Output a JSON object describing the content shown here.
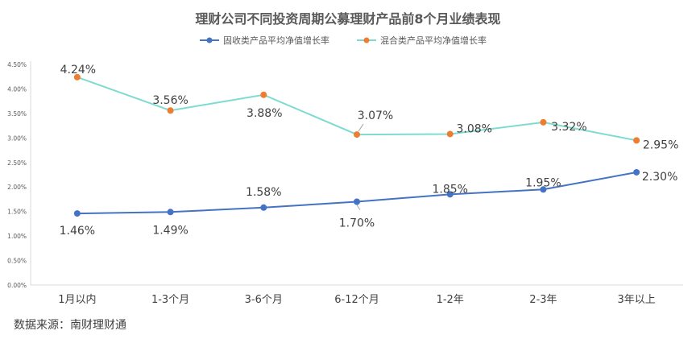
{
  "chart_data": {
    "type": "line",
    "title": "理财公司不同投资周期公募理财产品前8个月业绩表现",
    "categories": [
      "1月以内",
      "1-3个月",
      "3-6个月",
      "6-12个月",
      "1-2年",
      "2-3年",
      "3年以上"
    ],
    "series": [
      {
        "name": "固收类产品平均净值增长率",
        "values": [
          1.46,
          1.49,
          1.58,
          1.7,
          1.85,
          1.95,
          2.3
        ],
        "labels": [
          "1.46%",
          "1.49%",
          "1.58%",
          "1.70%",
          "1.85%",
          "1.95%",
          "2.30%"
        ],
        "line_color": "#4472C4",
        "marker_color": "#4472C4"
      },
      {
        "name": "混合类产品平均净值增长率",
        "values": [
          4.24,
          3.56,
          3.88,
          3.07,
          3.08,
          3.32,
          2.95
        ],
        "labels": [
          "4.24%",
          "3.56%",
          "3.88%",
          "3.07%",
          "3.08%",
          "3.32%",
          "2.95%"
        ],
        "line_color": "#7FDBD0",
        "marker_color": "#ED7D31"
      }
    ],
    "ylim": [
      0,
      4.5
    ],
    "yticks": [
      "0.00%",
      "0.50%",
      "1.00%",
      "1.50%",
      "2.00%",
      "2.50%",
      "3.00%",
      "3.50%",
      "4.00%",
      "4.50%"
    ],
    "grid": false,
    "legend_position": "top"
  },
  "source_text": "数据来源：南财理财通"
}
